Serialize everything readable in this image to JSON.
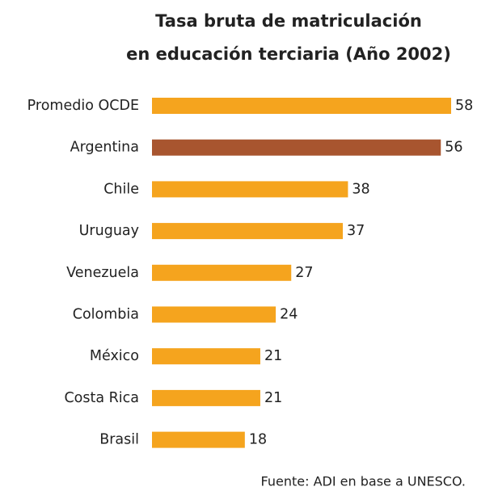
{
  "chart_data": {
    "type": "bar",
    "orientation": "horizontal",
    "title": [
      "Tasa bruta de matriculación",
      "en educación terciaria (Año 2002)"
    ],
    "categories": [
      "Promedio OCDE",
      "Argentina",
      "Chile",
      "Uruguay",
      "Venezuela",
      "Colombia",
      "México",
      "Costa Rica",
      "Brasil"
    ],
    "values": [
      58,
      56,
      38,
      37,
      27,
      24,
      21,
      21,
      18
    ],
    "colors": [
      "#f5a41e",
      "#a8552f",
      "#f5a41e",
      "#f5a41e",
      "#f5a41e",
      "#f5a41e",
      "#f5a41e",
      "#f5a41e",
      "#f5a41e"
    ],
    "note": "Fuente: ADI en base a UNESCO."
  }
}
